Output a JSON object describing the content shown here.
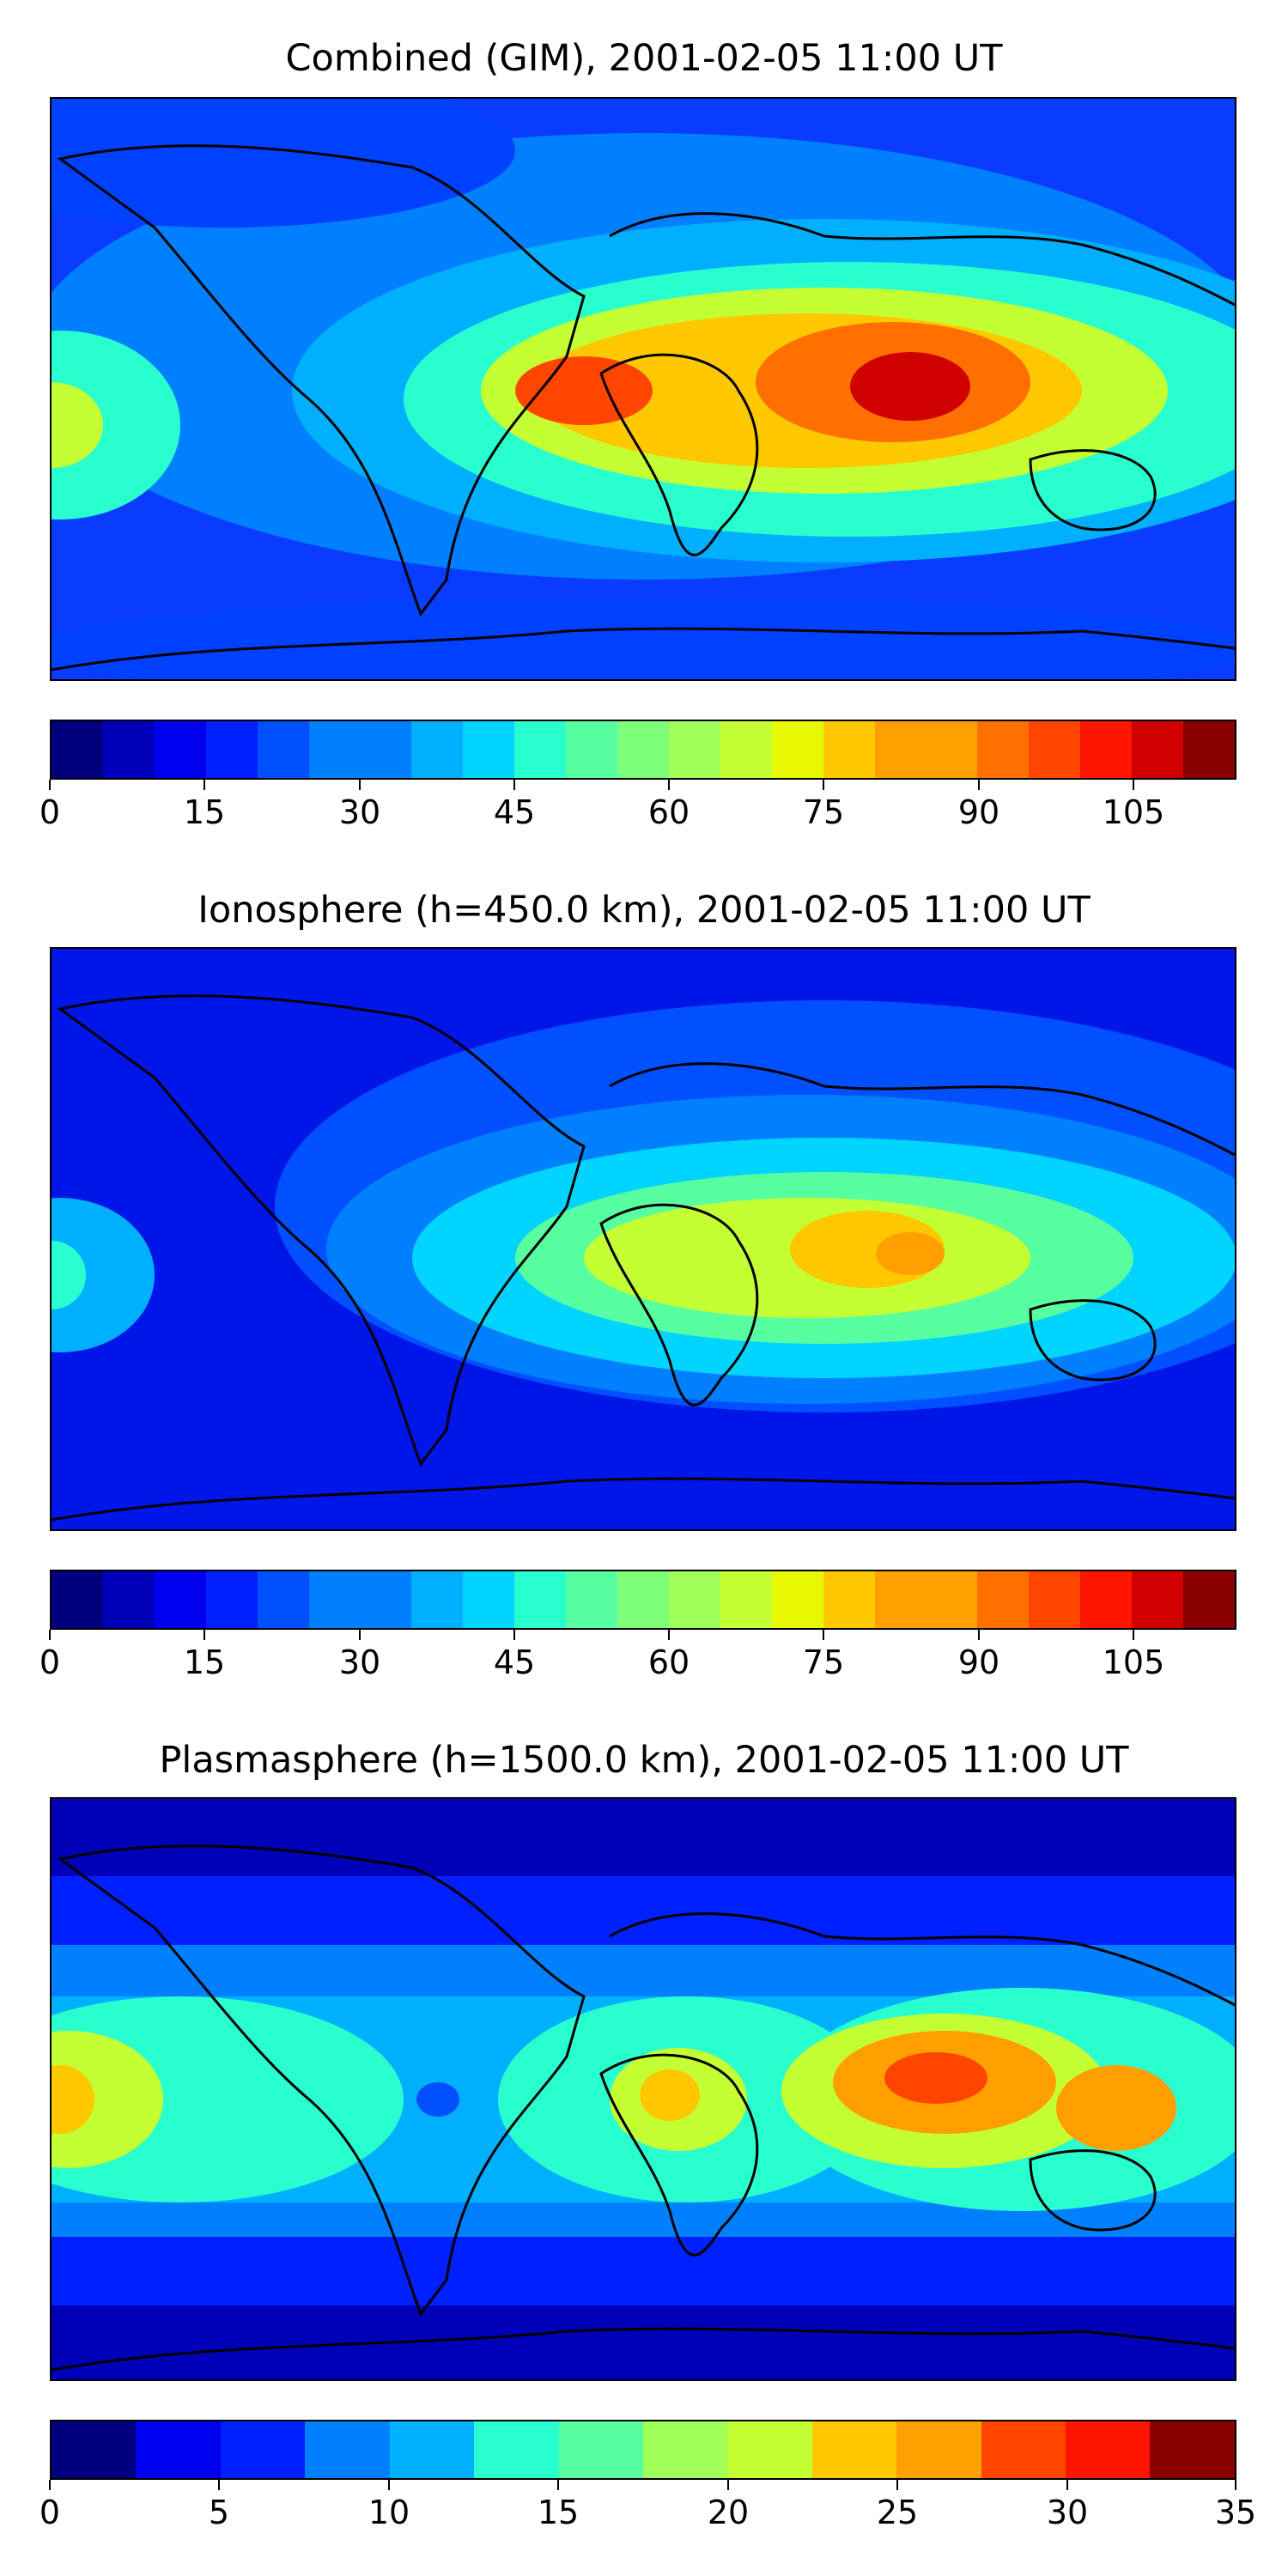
{
  "chart_data": [
    {
      "type": "heatmap",
      "title": "Combined (GIM), 2001-02-05 11:00 UT",
      "colorbar": {
        "min": 0,
        "max": 115,
        "step": 5,
        "tick_labels": [
          "0",
          "15",
          "30",
          "45",
          "60",
          "75",
          "90",
          "105"
        ],
        "tick_values": [
          0,
          15,
          30,
          45,
          60,
          75,
          90,
          105
        ]
      },
      "grid": false
    },
    {
      "type": "heatmap",
      "title": "Ionosphere  (h=450.0 km), 2001-02-05 11:00 UT",
      "colorbar": {
        "min": 0,
        "max": 115,
        "step": 5,
        "tick_labels": [
          "0",
          "15",
          "30",
          "45",
          "60",
          "75",
          "90",
          "105"
        ],
        "tick_values": [
          0,
          15,
          30,
          45,
          60,
          75,
          90,
          105
        ]
      },
      "grid": false
    },
    {
      "type": "heatmap",
      "title": "Plasmasphere (h=1500.0 km), 2001-02-05 11:00 UT",
      "colorbar": {
        "min": 0,
        "max": 35,
        "step": 2.5,
        "tick_labels": [
          "0",
          "5",
          "10",
          "15",
          "20",
          "25",
          "30",
          "35"
        ],
        "tick_values": [
          0,
          5,
          10,
          15,
          20,
          25,
          30,
          35
        ]
      },
      "grid": false
    }
  ],
  "colors": {
    "jet": [
      "#00007f",
      "#0000b8",
      "#0000f0",
      "#0020ff",
      "#0050ff",
      "#0080ff",
      "#00b0ff",
      "#00d4ff",
      "#29ffce",
      "#58ffa0",
      "#7dff7a",
      "#a0ff58",
      "#c4ff33",
      "#e8f800",
      "#ffc800",
      "#ffa000",
      "#ff7000",
      "#ff4500",
      "#ff1500",
      "#d00000",
      "#8a0000"
    ]
  }
}
